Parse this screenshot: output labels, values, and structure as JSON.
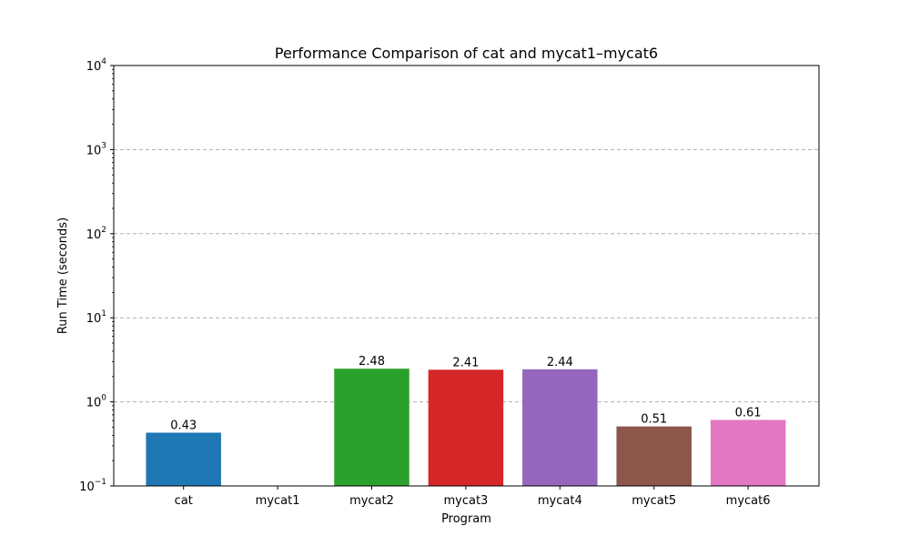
{
  "chart_data": {
    "type": "bar",
    "title": "Performance Comparison of cat and mycat1–mycat6",
    "xlabel": "Program",
    "ylabel": "Run Time (seconds)",
    "yscale": "log",
    "ylim": [
      0.1,
      10000
    ],
    "grid": "y-dashed",
    "categories": [
      "cat",
      "mycat1",
      "mycat2",
      "mycat3",
      "mycat4",
      "mycat5",
      "mycat6"
    ],
    "values": [
      0.43,
      null,
      2.48,
      2.41,
      2.44,
      0.51,
      0.61
    ],
    "value_labels": [
      "0.43",
      "",
      "2.48",
      "2.41",
      "2.44",
      "0.51",
      "0.61"
    ],
    "colors": [
      "#1f77b4",
      "#ff7f0e",
      "#2ca02c",
      "#d62728",
      "#9467bd",
      "#8c564b",
      "#e377c2"
    ],
    "yticks": [
      {
        "value": 0.1,
        "base": "10",
        "exp": "−1"
      },
      {
        "value": 1,
        "base": "10",
        "exp": "0"
      },
      {
        "value": 10,
        "base": "10",
        "exp": "1"
      },
      {
        "value": 100,
        "base": "10",
        "exp": "2"
      },
      {
        "value": 1000,
        "base": "10",
        "exp": "3"
      },
      {
        "value": 10000,
        "base": "10",
        "exp": "4"
      }
    ]
  }
}
